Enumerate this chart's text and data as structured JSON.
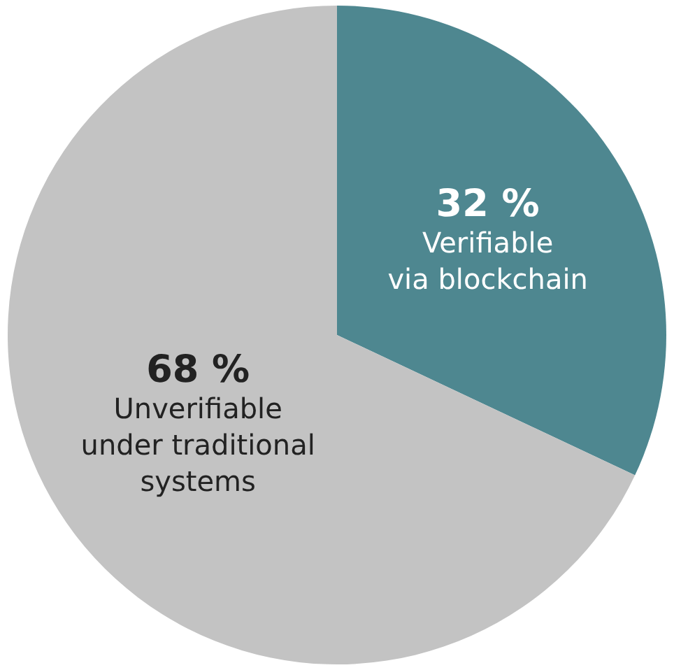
{
  "chart_data": {
    "type": "pie",
    "categories": [
      "Verifiable\nvia blockchain",
      "Unverifiable\nunder traditional\nsystems"
    ],
    "values": [
      32,
      68
    ],
    "value_labels": [
      "32 %",
      "68 %"
    ],
    "colors": [
      "#4e8790",
      "#c3c3c3"
    ],
    "legend": false
  }
}
